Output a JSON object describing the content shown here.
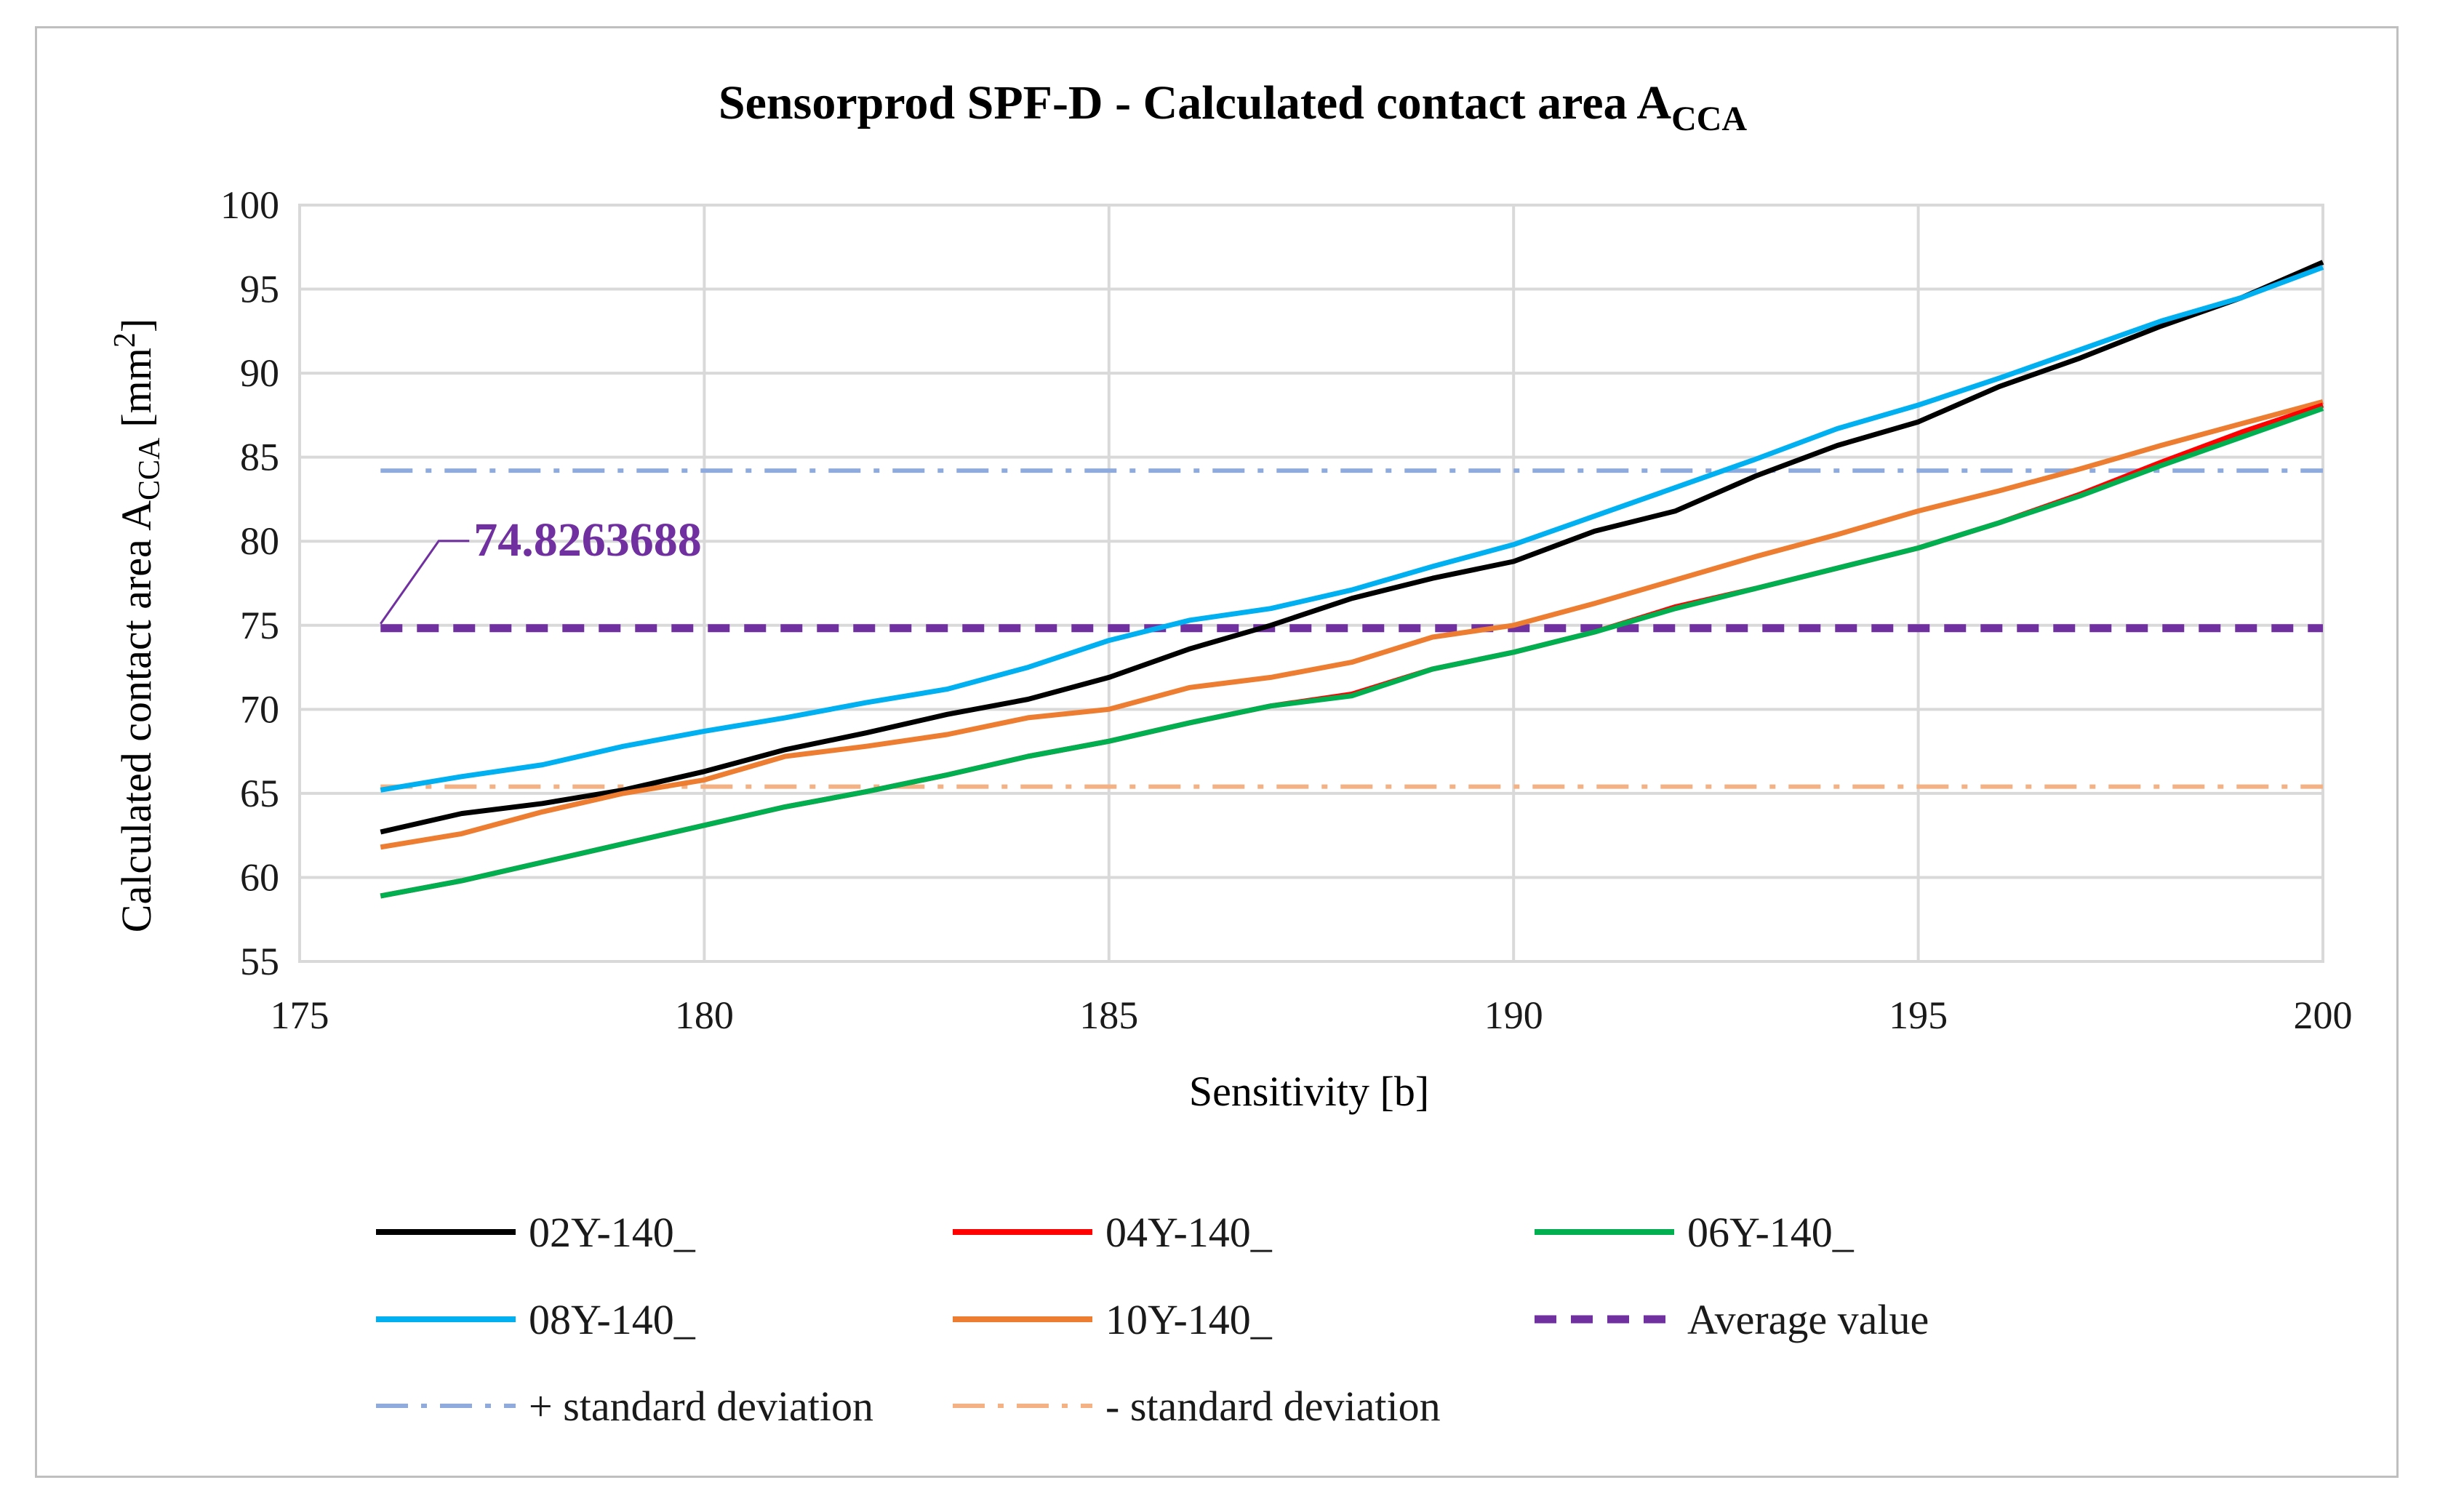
{
  "chart_data": {
    "type": "line",
    "title": "Sensorprod SPF-D - Calculated contact area A",
    "title_subscript": "CCA",
    "xlabel": "Sensitivity  [b]",
    "ylabel": "Calculated  contact area A",
    "ylabel_subscript": "CCA",
    "ylabel_unit": "[mm",
    "ylabel_unit_sup": "2",
    "ylabel_unit_end": "]",
    "xlim": [
      175,
      200
    ],
    "ylim": [
      55,
      100
    ],
    "xticks": [
      175,
      180,
      185,
      190,
      195,
      200
    ],
    "yticks": [
      55,
      60,
      65,
      70,
      75,
      80,
      85,
      90,
      95,
      100
    ],
    "grid": true,
    "x": [
      176,
      177,
      178,
      179,
      180,
      181,
      182,
      183,
      184,
      185,
      186,
      187,
      188,
      189,
      190,
      191,
      192,
      193,
      194,
      195,
      196,
      197,
      198,
      199,
      200
    ],
    "series": [
      {
        "name": "02Y-140_",
        "color": "#000000",
        "style": "solid",
        "values": [
          62.7,
          63.8,
          64.4,
          65.2,
          66.3,
          67.6,
          68.6,
          69.7,
          70.6,
          71.9,
          73.6,
          75.0,
          76.6,
          77.8,
          78.8,
          80.6,
          81.8,
          83.9,
          85.7,
          87.1,
          89.2,
          90.9,
          92.8,
          94.5,
          96.6
        ]
      },
      {
        "name": "04Y-140_",
        "color": "#ff0000",
        "style": "solid",
        "values": [
          58.9,
          59.8,
          60.9,
          62.0,
          63.1,
          64.2,
          65.1,
          66.1,
          67.2,
          68.1,
          69.2,
          70.2,
          70.9,
          72.4,
          73.4,
          74.6,
          76.1,
          77.2,
          78.4,
          79.6,
          81.1,
          82.8,
          84.7,
          86.5,
          88.1
        ]
      },
      {
        "name": "06Y-140_",
        "color": "#00b050",
        "style": "solid",
        "values": [
          58.9,
          59.8,
          60.9,
          62.0,
          63.1,
          64.2,
          65.1,
          66.1,
          67.2,
          68.1,
          69.2,
          70.2,
          70.8,
          72.4,
          73.4,
          74.6,
          76.0,
          77.2,
          78.4,
          79.6,
          81.1,
          82.7,
          84.5,
          86.2,
          87.9
        ]
      },
      {
        "name": "08Y-140_",
        "color": "#00b0f0",
        "style": "solid",
        "values": [
          65.2,
          66.0,
          66.7,
          67.8,
          68.7,
          69.5,
          70.4,
          71.2,
          72.5,
          74.1,
          75.3,
          76.0,
          77.1,
          78.5,
          79.8,
          81.5,
          83.2,
          84.9,
          86.7,
          88.1,
          89.7,
          91.4,
          93.1,
          94.5,
          96.3
        ]
      },
      {
        "name": "10Y-140_",
        "color": "#ed7d31",
        "style": "solid",
        "values": [
          61.8,
          62.6,
          63.9,
          65.0,
          65.8,
          67.2,
          67.8,
          68.5,
          69.5,
          70.0,
          71.3,
          71.9,
          72.8,
          74.3,
          75.0,
          76.3,
          77.7,
          79.1,
          80.4,
          81.8,
          83.0,
          84.3,
          85.7,
          87.0,
          88.3
        ]
      },
      {
        "name": "Average value",
        "color": "#7030a0",
        "style": "dash",
        "constant": 74.8263688
      },
      {
        "name": "+ standard deviation",
        "color": "#8faadc",
        "style": "dashdot",
        "constant": 84.2
      },
      {
        "name": "- standard deviation",
        "color": "#f4b183",
        "style": "dashdot",
        "constant": 65.4
      }
    ],
    "annotation": {
      "text": "74.8263688",
      "x": 176,
      "y": 74.8263688
    }
  }
}
